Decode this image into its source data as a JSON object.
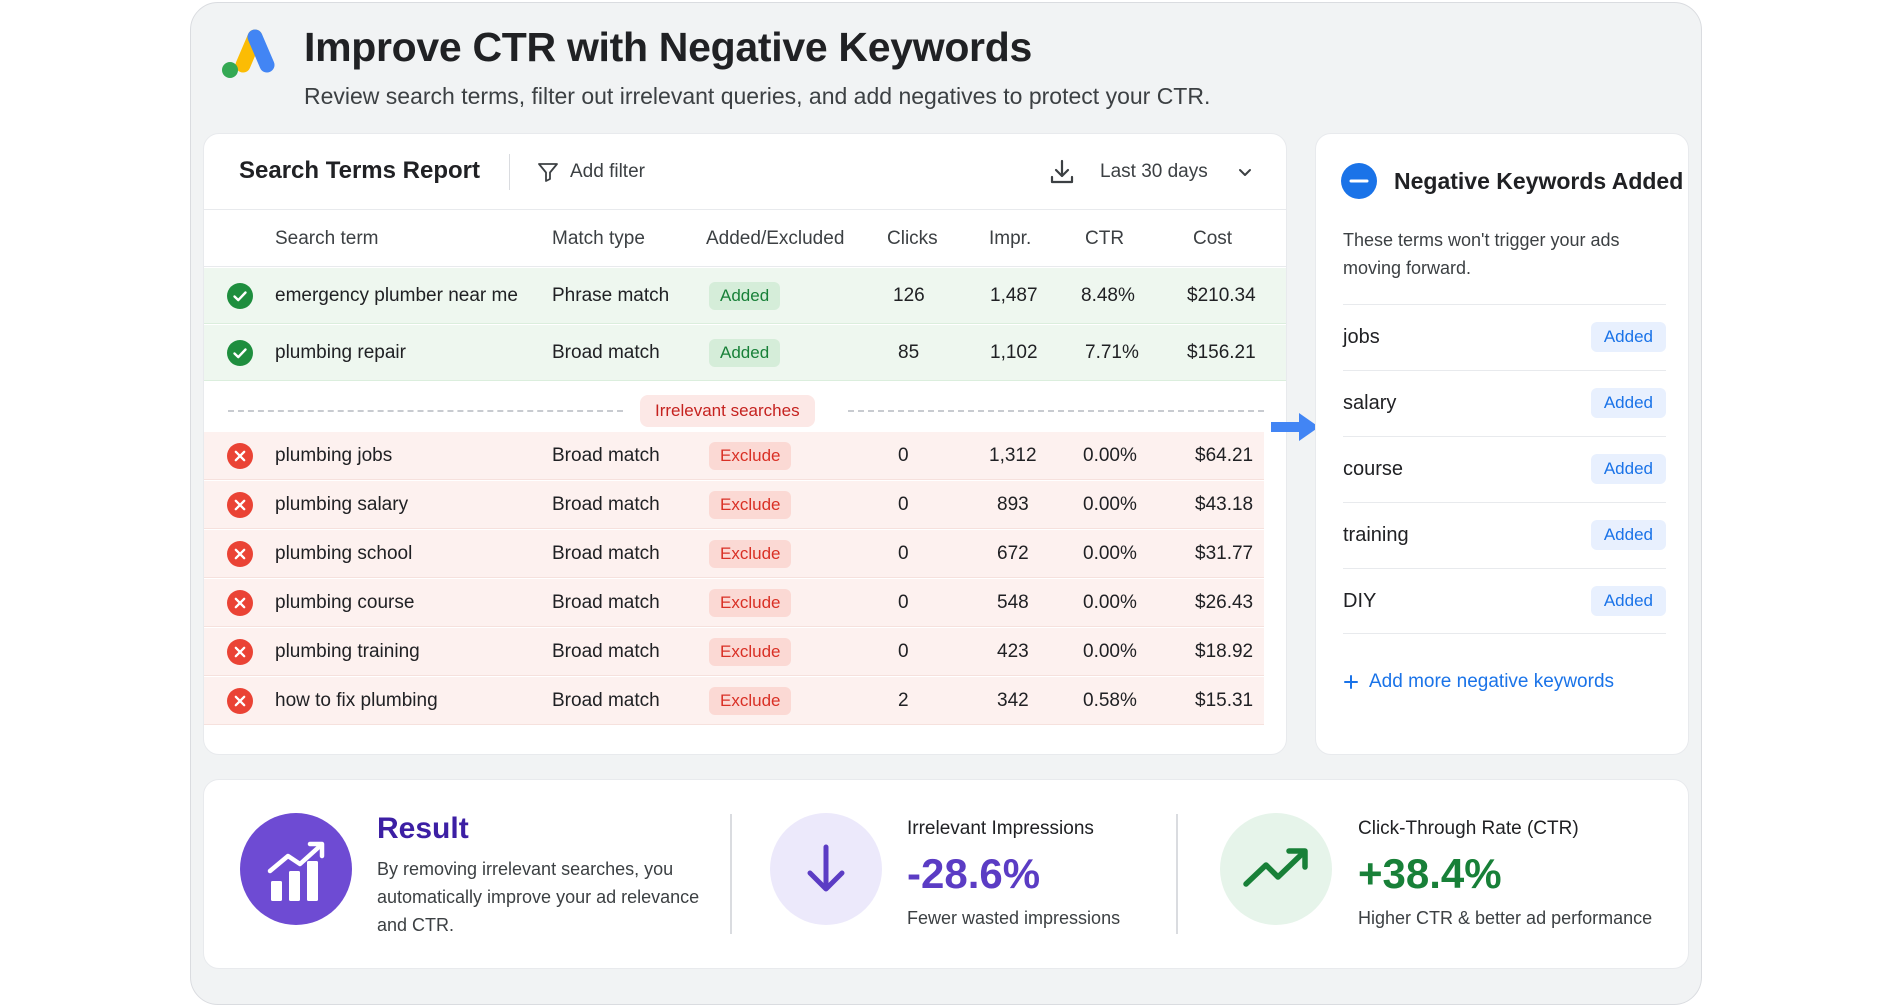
{
  "header": {
    "title": "Improve CTR with Negative Keywords",
    "subtitle": "Review search terms, filter out irrelevant queries, and add negatives to protect your CTR."
  },
  "report": {
    "title": "Search Terms Report",
    "filter_label": "Add filter",
    "date_range": "Last 30 days",
    "columns": [
      "Search term",
      "Match type",
      "Added/Excluded",
      "Clicks",
      "Impr.",
      "CTR",
      "Cost"
    ],
    "added_rows": [
      {
        "term": "emergency plumber near me",
        "match": "Phrase match",
        "status": "Added",
        "clicks": "126",
        "impr": "1,487",
        "ctr": "8.48%",
        "cost": "$210.34"
      },
      {
        "term": "plumbing repair",
        "match": "Broad match",
        "status": "Added",
        "clicks": "85",
        "impr": "1,102",
        "ctr": "7.71%",
        "cost": "$156.21"
      }
    ],
    "separator_label": "Irrelevant searches",
    "excluded_rows": [
      {
        "term": "plumbing jobs",
        "match": "Broad match",
        "status": "Exclude",
        "clicks": "0",
        "impr": "1,312",
        "ctr": "0.00%",
        "cost": "$64.21"
      },
      {
        "term": "plumbing salary",
        "match": "Broad match",
        "status": "Exclude",
        "clicks": "0",
        "impr": "893",
        "ctr": "0.00%",
        "cost": "$43.18"
      },
      {
        "term": "plumbing school",
        "match": "Broad match",
        "status": "Exclude",
        "clicks": "0",
        "impr": "672",
        "ctr": "0.00%",
        "cost": "$31.77"
      },
      {
        "term": "plumbing course",
        "match": "Broad match",
        "status": "Exclude",
        "clicks": "0",
        "impr": "548",
        "ctr": "0.00%",
        "cost": "$26.43"
      },
      {
        "term": "plumbing training",
        "match": "Broad match",
        "status": "Exclude",
        "clicks": "0",
        "impr": "423",
        "ctr": "0.00%",
        "cost": "$18.92"
      },
      {
        "term": "how to fix plumbing",
        "match": "Broad match",
        "status": "Exclude",
        "clicks": "2",
        "impr": "342",
        "ctr": "0.58%",
        "cost": "$15.31"
      }
    ]
  },
  "negatives": {
    "title": "Negative Keywords Added",
    "description": "These terms won't trigger your ads moving forward.",
    "items": [
      {
        "term": "jobs",
        "badge": "Added"
      },
      {
        "term": "salary",
        "badge": "Added"
      },
      {
        "term": "course",
        "badge": "Added"
      },
      {
        "term": "training",
        "badge": "Added"
      },
      {
        "term": "DIY",
        "badge": "Added"
      }
    ],
    "add_more": "Add more negative keywords"
  },
  "results": {
    "title": "Result",
    "description": "By removing irrelevant searches, you automatically improve your ad relevance and CTR.",
    "stats": [
      {
        "label": "Irrelevant Impressions",
        "value": "-28.6%",
        "sub": "Fewer wasted impressions",
        "color": "#5b3cc4"
      },
      {
        "label": "Click-Through Rate (CTR)",
        "value": "+38.4%",
        "sub": "Higher CTR & better ad performance",
        "color": "#188038"
      }
    ]
  },
  "colors": {
    "added_green": "#188038",
    "exclude_red": "#d93025",
    "accent_blue": "#1a73e8",
    "result_purple": "#6e4bd3"
  },
  "icons": [
    "google-ads-logo",
    "filter-icon",
    "download-icon",
    "chevron-down-icon",
    "check-circle-icon",
    "x-circle-icon",
    "minus-circle-icon",
    "arrow-right-icon",
    "plus-icon",
    "bar-chart-growth-icon",
    "arrow-down-icon",
    "trending-up-icon"
  ]
}
